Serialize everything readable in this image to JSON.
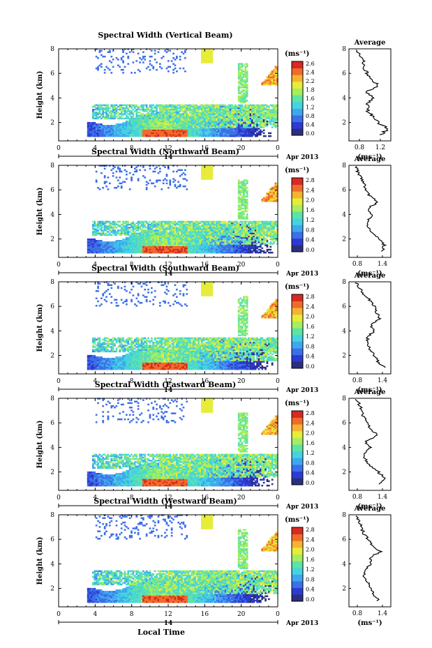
{
  "figure": {
    "xlabel_bottom": "Local Time",
    "date_label": "Apr 2013",
    "day_label": "14"
  },
  "colorbar": {
    "unit_label": "(ms⁻¹)",
    "ticks_vertical": [
      "2.6",
      "2.4",
      "2.2",
      "1.8",
      "1.6",
      "1.2",
      "0.8",
      "0.4",
      "0.0"
    ],
    "ticks_other": [
      "2.8",
      "2.4",
      "2.0",
      "1.6",
      "1.2",
      "0.8",
      "0.4",
      "0.0"
    ],
    "colors": [
      "#2b2f7e",
      "#2c3bd0",
      "#3d6fe8",
      "#3fa7ee",
      "#45d3df",
      "#5fe3a4",
      "#a6ee5e",
      "#e6ec3a",
      "#f6b232",
      "#ef6b2a",
      "#d62a22"
    ]
  },
  "chart_data": [
    {
      "type": "heatmap",
      "title": "Spectral Width (Vertical Beam)",
      "xlabel": "",
      "ylabel": "Height (km)",
      "x_ticks": [
        "0",
        "4",
        "8",
        "12",
        "16",
        "20",
        "0"
      ],
      "y_ticks": [
        "2",
        "4",
        "6",
        "8"
      ],
      "xlim": [
        0,
        24
      ],
      "ylim": [
        0.5,
        8
      ],
      "average_profile": {
        "title": "Average",
        "xlabel": "(ms⁻¹)",
        "x_ticks": [
          "0.8",
          "1.2"
        ],
        "xlim": [
          0.6,
          1.4
        ],
        "y_ticks": [
          "2",
          "4",
          "6",
          "8"
        ],
        "heights": [
          1.0,
          1.5,
          2.0,
          2.5,
          3.0,
          3.5,
          4.0,
          4.5,
          5.0,
          5.5,
          6.0,
          6.5,
          7.0,
          7.5,
          8.0
        ],
        "values": [
          1.2,
          1.35,
          1.15,
          1.05,
          0.95,
          0.95,
          1.05,
          0.95,
          1.15,
          1.05,
          0.95,
          0.85,
          0.9,
          0.8,
          0.75
        ]
      }
    },
    {
      "type": "heatmap",
      "title": "Spectral Width (Northward Beam)",
      "xlabel": "",
      "ylabel": "Height (km)",
      "x_ticks": [
        "0",
        "4",
        "8",
        "12",
        "16",
        "20",
        "0"
      ],
      "y_ticks": [
        "2",
        "4",
        "6",
        "8"
      ],
      "xlim": [
        0,
        24
      ],
      "ylim": [
        0.5,
        8
      ],
      "average_profile": {
        "title": "Average",
        "xlabel": "(ms⁻¹)",
        "x_ticks": [
          "0.8",
          "1.4"
        ],
        "xlim": [
          0.6,
          1.6
        ],
        "y_ticks": [
          "2",
          "4",
          "6",
          "8"
        ],
        "heights": [
          1.0,
          1.5,
          2.0,
          2.5,
          3.0,
          3.5,
          4.0,
          4.5,
          5.0,
          5.5,
          6.0,
          6.5,
          7.0,
          7.5,
          8.0
        ],
        "values": [
          1.4,
          1.45,
          1.3,
          1.15,
          1.05,
          1.05,
          1.15,
          1.05,
          1.3,
          1.1,
          1.0,
          0.95,
          0.9,
          0.8,
          0.75
        ]
      }
    },
    {
      "type": "heatmap",
      "title": "Spectral Width (Southward Beam)",
      "xlabel": "",
      "ylabel": "Height (km)",
      "x_ticks": [
        "0",
        "4",
        "8",
        "12",
        "16",
        "20",
        "0"
      ],
      "y_ticks": [
        "2",
        "4",
        "6",
        "8"
      ],
      "xlim": [
        0,
        24
      ],
      "ylim": [
        0.5,
        8
      ],
      "average_profile": {
        "title": "Average",
        "xlabel": "(ms⁻¹)",
        "x_ticks": [
          "0.8",
          "1.4"
        ],
        "xlim": [
          0.6,
          1.6
        ],
        "y_ticks": [
          "2",
          "4",
          "6",
          "8"
        ],
        "heights": [
          1.0,
          1.5,
          2.0,
          2.5,
          3.0,
          3.5,
          4.0,
          4.5,
          5.0,
          5.5,
          6.0,
          6.5,
          7.0,
          7.5,
          8.0
        ],
        "values": [
          1.45,
          1.3,
          1.2,
          1.1,
          1.05,
          1.05,
          1.2,
          1.1,
          1.35,
          1.25,
          1.2,
          1.1,
          0.95,
          0.85,
          0.75
        ]
      }
    },
    {
      "type": "heatmap",
      "title": "Spectral Width (Eastward Beam)",
      "xlabel": "",
      "ylabel": "Height (km)",
      "x_ticks": [
        "0",
        "4",
        "8",
        "12",
        "16",
        "20",
        "0"
      ],
      "y_ticks": [
        "2",
        "4",
        "6",
        "8"
      ],
      "xlim": [
        0,
        24
      ],
      "ylim": [
        0.5,
        8
      ],
      "average_profile": {
        "title": "Average",
        "xlabel": "(ms⁻¹)",
        "x_ticks": [
          "0.8",
          "1.4"
        ],
        "xlim": [
          0.6,
          1.6
        ],
        "y_ticks": [
          "2",
          "4",
          "6",
          "8"
        ],
        "heights": [
          1.0,
          1.5,
          2.0,
          2.5,
          3.0,
          3.5,
          4.0,
          4.5,
          5.0,
          5.5,
          6.0,
          6.5,
          7.0,
          7.5,
          8.0
        ],
        "values": [
          1.35,
          1.45,
          1.3,
          1.1,
          1.0,
          0.95,
          1.1,
          1.0,
          1.3,
          1.1,
          1.05,
          0.95,
          0.9,
          0.85,
          0.75
        ]
      }
    },
    {
      "type": "heatmap",
      "title": "Spectral Width (Westward Beam)",
      "xlabel": "Local Time",
      "ylabel": "Height (km)",
      "x_ticks": [
        "0",
        "4",
        "8",
        "12",
        "16",
        "20",
        "0"
      ],
      "y_ticks": [
        "2",
        "4",
        "6",
        "8"
      ],
      "xlim": [
        0,
        24
      ],
      "ylim": [
        0.5,
        8
      ],
      "average_profile": {
        "title": "Average",
        "xlabel": "(ms⁻¹)",
        "x_ticks": [
          "0.8",
          "1.4"
        ],
        "xlim": [
          0.6,
          1.6
        ],
        "y_ticks": [
          "2",
          "4",
          "6",
          "8"
        ],
        "heights": [
          1.0,
          1.5,
          2.0,
          2.5,
          3.0,
          3.5,
          4.0,
          4.5,
          5.0,
          5.5,
          6.0,
          6.5,
          7.0,
          7.5,
          8.0
        ],
        "values": [
          1.3,
          1.2,
          1.1,
          1.05,
          0.95,
          0.95,
          1.15,
          1.1,
          1.35,
          1.15,
          1.05,
          0.95,
          0.9,
          0.85,
          0.75
        ]
      }
    }
  ]
}
